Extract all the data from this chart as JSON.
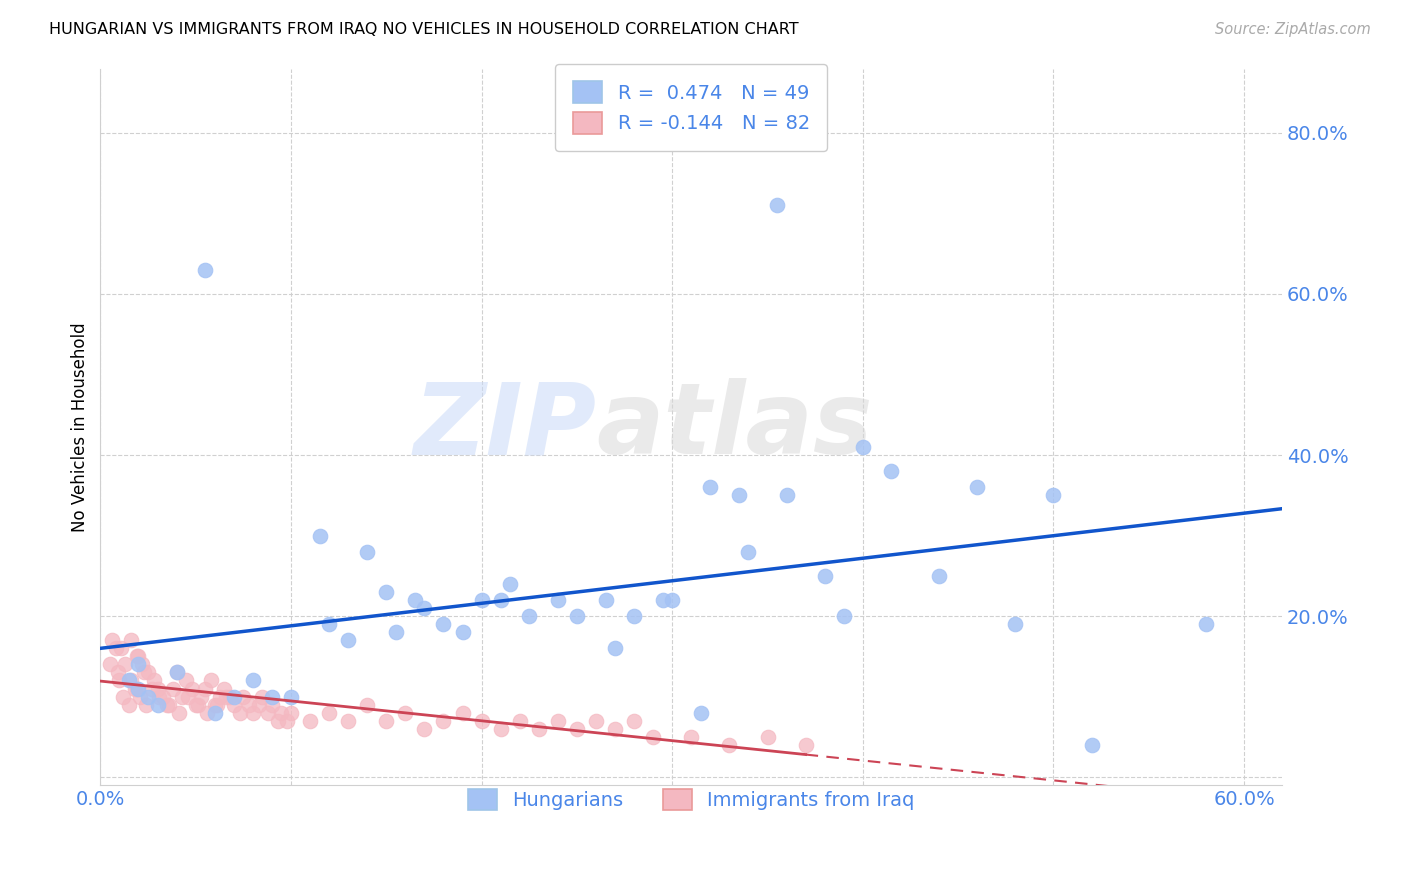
{
  "title": "HUNGARIAN VS IMMIGRANTS FROM IRAQ NO VEHICLES IN HOUSEHOLD CORRELATION CHART",
  "source": "Source: ZipAtlas.com",
  "ylabel": "No Vehicles in Household",
  "xlim": [
    0.0,
    0.62
  ],
  "ylim": [
    -0.01,
    0.88
  ],
  "xtick_positions": [
    0.0,
    0.1,
    0.2,
    0.3,
    0.4,
    0.5,
    0.6
  ],
  "xtick_labels": [
    "0.0%",
    "",
    "",
    "",
    "",
    "",
    "60.0%"
  ],
  "ytick_positions": [
    0.0,
    0.2,
    0.4,
    0.6,
    0.8
  ],
  "ytick_labels": [
    "",
    "20.0%",
    "40.0%",
    "60.0%",
    "80.0%"
  ],
  "grid_color": "#d0d0d0",
  "background_color": "#ffffff",
  "blue_dot_color": "#a4c2f4",
  "pink_dot_color": "#f4b8c1",
  "blue_line_color": "#1155cc",
  "pink_line_color": "#cc4455",
  "tick_label_color": "#4a86e8",
  "legend_r_blue": " 0.474",
  "legend_n_blue": "49",
  "legend_r_pink": "-0.144",
  "legend_n_pink": "82",
  "label_blue": "Hungarians",
  "label_pink": "Immigrants from Iraq",
  "watermark_zip": "ZIP",
  "watermark_atlas": "atlas",
  "blue_scatter_x": [
    0.02,
    0.025,
    0.015,
    0.03,
    0.02,
    0.04,
    0.06,
    0.07,
    0.08,
    0.09,
    0.1,
    0.12,
    0.13,
    0.14,
    0.15,
    0.155,
    0.165,
    0.17,
    0.18,
    0.19,
    0.2,
    0.21,
    0.215,
    0.225,
    0.24,
    0.25,
    0.27,
    0.28,
    0.3,
    0.32,
    0.34,
    0.36,
    0.38,
    0.4,
    0.415,
    0.44,
    0.46,
    0.48,
    0.5,
    0.52,
    0.055,
    0.115,
    0.265,
    0.295,
    0.315,
    0.335,
    0.355,
    0.39,
    0.58
  ],
  "blue_scatter_y": [
    0.14,
    0.1,
    0.12,
    0.09,
    0.11,
    0.13,
    0.08,
    0.1,
    0.12,
    0.1,
    0.1,
    0.19,
    0.17,
    0.28,
    0.23,
    0.18,
    0.22,
    0.21,
    0.19,
    0.18,
    0.22,
    0.22,
    0.24,
    0.2,
    0.22,
    0.2,
    0.16,
    0.2,
    0.22,
    0.36,
    0.28,
    0.35,
    0.25,
    0.41,
    0.38,
    0.25,
    0.36,
    0.19,
    0.35,
    0.04,
    0.63,
    0.3,
    0.22,
    0.22,
    0.08,
    0.35,
    0.71,
    0.2,
    0.19
  ],
  "pink_scatter_x": [
    0.005,
    0.008,
    0.01,
    0.012,
    0.015,
    0.018,
    0.02,
    0.022,
    0.025,
    0.028,
    0.03,
    0.033,
    0.035,
    0.038,
    0.04,
    0.043,
    0.045,
    0.048,
    0.05,
    0.053,
    0.055,
    0.058,
    0.06,
    0.063,
    0.065,
    0.068,
    0.07,
    0.073,
    0.075,
    0.078,
    0.08,
    0.083,
    0.085,
    0.088,
    0.09,
    0.093,
    0.095,
    0.098,
    0.1,
    0.11,
    0.12,
    0.13,
    0.14,
    0.15,
    0.16,
    0.17,
    0.18,
    0.19,
    0.2,
    0.21,
    0.22,
    0.23,
    0.24,
    0.25,
    0.26,
    0.27,
    0.28,
    0.29,
    0.31,
    0.33,
    0.35,
    0.37,
    0.006,
    0.009,
    0.011,
    0.013,
    0.016,
    0.019,
    0.021,
    0.024,
    0.027,
    0.031,
    0.036,
    0.041,
    0.046,
    0.051,
    0.056,
    0.061,
    0.066,
    0.016,
    0.019,
    0.023
  ],
  "pink_scatter_y": [
    0.14,
    0.16,
    0.12,
    0.1,
    0.09,
    0.11,
    0.15,
    0.14,
    0.13,
    0.12,
    0.11,
    0.1,
    0.09,
    0.11,
    0.13,
    0.1,
    0.12,
    0.11,
    0.09,
    0.1,
    0.11,
    0.12,
    0.09,
    0.1,
    0.11,
    0.1,
    0.09,
    0.08,
    0.1,
    0.09,
    0.08,
    0.09,
    0.1,
    0.08,
    0.09,
    0.07,
    0.08,
    0.07,
    0.08,
    0.07,
    0.08,
    0.07,
    0.09,
    0.07,
    0.08,
    0.06,
    0.07,
    0.08,
    0.07,
    0.06,
    0.07,
    0.06,
    0.07,
    0.06,
    0.07,
    0.06,
    0.07,
    0.05,
    0.05,
    0.04,
    0.05,
    0.04,
    0.17,
    0.13,
    0.16,
    0.14,
    0.12,
    0.11,
    0.1,
    0.09,
    0.11,
    0.1,
    0.09,
    0.08,
    0.1,
    0.09,
    0.08,
    0.09,
    0.1,
    0.17,
    0.15,
    0.13
  ]
}
